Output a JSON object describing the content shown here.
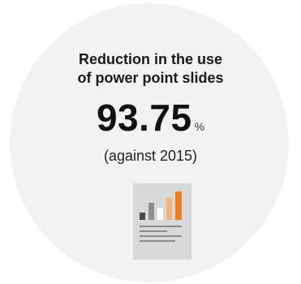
{
  "card": {
    "title_line1": "Reduction in the use",
    "title_line2": "of power point slides",
    "value": "93.75",
    "unit": "%",
    "subtitle": "(against 2015)"
  },
  "icon": {
    "name": "document-bar-chart-icon",
    "bar_colors": [
      "#4a4a4a",
      "#8c8c8c",
      "#ffffff",
      "#f5b27a",
      "#ef7d22"
    ],
    "line_color": "#8c8c8c"
  },
  "colors": {
    "background": "#f2f2f2",
    "accent": "#ef7d22"
  }
}
